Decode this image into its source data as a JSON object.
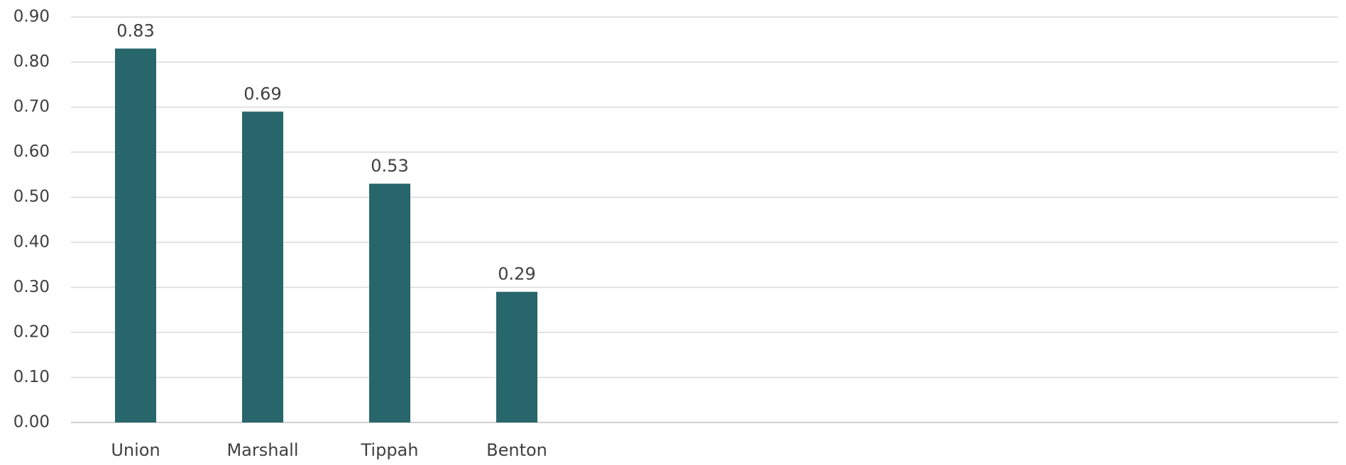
{
  "chart_data": {
    "type": "bar",
    "title": "",
    "xlabel": "",
    "ylabel": "",
    "categories": [
      "Union",
      "Marshall",
      "Tippah",
      "Benton"
    ],
    "values": [
      0.83,
      0.69,
      0.53,
      0.29
    ],
    "data_labels": [
      "0.83",
      "0.69",
      "0.53",
      "0.29"
    ],
    "ylim": [
      0,
      0.9
    ],
    "y_ticks": [
      0,
      0.1,
      0.2,
      0.3,
      0.4,
      0.5,
      0.6,
      0.7,
      0.8,
      0.9
    ],
    "y_tick_labels": [
      "0.00",
      "0.10",
      "0.20",
      "0.30",
      "0.40",
      "0.50",
      "0.60",
      "0.70",
      "0.80",
      "0.90"
    ],
    "grid": true,
    "legend": "none",
    "bar_color": "#27666B"
  }
}
